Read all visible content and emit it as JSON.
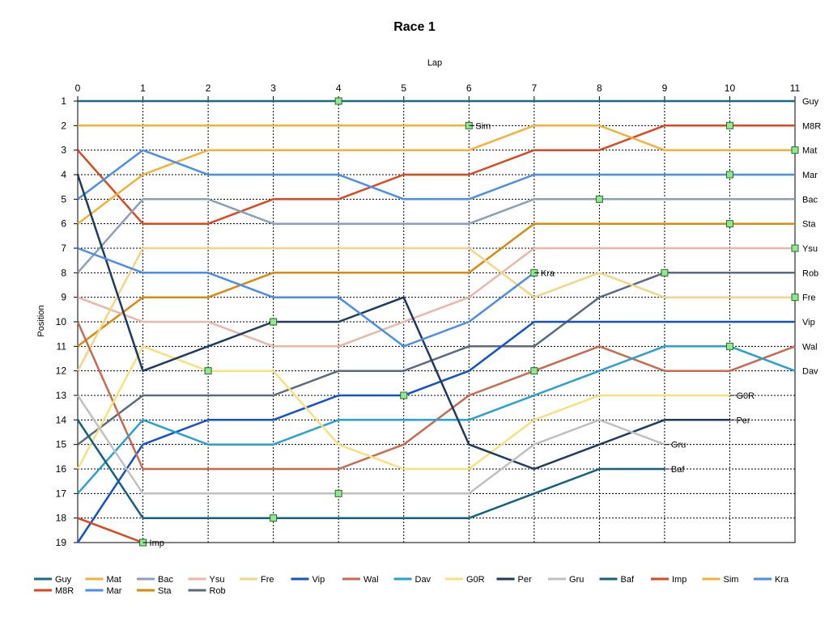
{
  "chart_data": {
    "type": "line",
    "title": "Race 1",
    "xlabel": "Lap",
    "ylabel": "Position",
    "x_axis_position": "top",
    "y_inverted": true,
    "xlim": [
      0,
      11
    ],
    "ylim": [
      1,
      19
    ],
    "x_ticks": [
      "0",
      "1",
      "2",
      "3",
      "4",
      "5",
      "6",
      "7",
      "8",
      "9",
      "10",
      "11"
    ],
    "y_ticks": [
      "1",
      "2",
      "3",
      "4",
      "5",
      "6",
      "7",
      "8",
      "9",
      "10",
      "11",
      "12",
      "13",
      "14",
      "15",
      "16",
      "17",
      "18",
      "19"
    ],
    "grid": true,
    "legend_position": "bottom",
    "series": [
      {
        "name": "Guy",
        "color": "#1a6b7c",
        "x": [
          0,
          1,
          2,
          3,
          4,
          5,
          6,
          7,
          8,
          9,
          10,
          11
        ],
        "y": [
          1,
          1,
          1,
          1,
          1,
          1,
          1,
          1,
          1,
          1,
          1,
          1
        ],
        "end_label": "Guy",
        "markers": [
          4
        ]
      },
      {
        "name": "M8R",
        "color": "#d9481f",
        "x": [
          0,
          1,
          2,
          3,
          4,
          5,
          6,
          7,
          8,
          9,
          10,
          11
        ],
        "y": [
          3,
          6,
          6,
          5,
          5,
          4,
          4,
          3,
          3,
          2,
          2,
          2
        ],
        "end_label": "M8R",
        "markers": [
          10
        ]
      },
      {
        "name": "Mat",
        "color": "#f3b03a",
        "x": [
          0,
          1,
          2,
          3,
          4,
          5,
          6,
          7,
          8,
          9,
          10,
          11
        ],
        "y": [
          6,
          4,
          3,
          3,
          3,
          3,
          3,
          2,
          2,
          3,
          3,
          3
        ],
        "end_label": "Mat",
        "markers": [
          11
        ]
      },
      {
        "name": "Mar",
        "color": "#4a8ee8",
        "x": [
          0,
          1,
          2,
          3,
          4,
          5,
          6,
          7,
          8,
          9,
          10,
          11
        ],
        "y": [
          5,
          3,
          4,
          4,
          4,
          5,
          5,
          4,
          4,
          4,
          4,
          4
        ],
        "end_label": "Mar",
        "markers": [
          10
        ]
      },
      {
        "name": "Bac",
        "color": "#8aa0b8",
        "x": [
          0,
          1,
          2,
          3,
          4,
          5,
          6,
          7,
          8,
          9,
          10,
          11
        ],
        "y": [
          8,
          5,
          5,
          6,
          6,
          6,
          6,
          5,
          5,
          5,
          5,
          5
        ],
        "end_label": "Bac",
        "markers": [
          8
        ]
      },
      {
        "name": "Sta",
        "color": "#d98a0f",
        "x": [
          0,
          1,
          2,
          3,
          4,
          5,
          6,
          7,
          8,
          9,
          10,
          11
        ],
        "y": [
          11,
          9,
          9,
          8,
          8,
          8,
          8,
          6,
          6,
          6,
          6,
          6
        ],
        "end_label": "Sta",
        "markers": [
          10
        ]
      },
      {
        "name": "Ysu",
        "color": "#eab6a8",
        "x": [
          0,
          1,
          2,
          3,
          4,
          5,
          6,
          7,
          8,
          9,
          10,
          11
        ],
        "y": [
          9,
          10,
          10,
          11,
          11,
          10,
          9,
          7,
          7,
          7,
          7,
          7
        ],
        "end_label": "Ysu",
        "markers": [
          11
        ]
      },
      {
        "name": "Rob",
        "color": "#5a6a80",
        "x": [
          0,
          1,
          2,
          3,
          4,
          5,
          6,
          7,
          8,
          9,
          10,
          11
        ],
        "y": [
          15,
          13,
          13,
          13,
          12,
          12,
          11,
          11,
          9,
          8,
          8,
          8
        ],
        "end_label": "Rob",
        "markers": [
          9
        ]
      },
      {
        "name": "Fre",
        "color": "#f4d488",
        "x": [
          0,
          1,
          2,
          3,
          4,
          5,
          6,
          7,
          8,
          9,
          10,
          11
        ],
        "y": [
          12,
          7,
          7,
          7,
          7,
          7,
          7,
          9,
          8,
          9,
          9,
          9
        ],
        "end_label": "Fre",
        "markers": [
          11
        ]
      },
      {
        "name": "Vip",
        "color": "#1452c8",
        "x": [
          0,
          1,
          2,
          3,
          4,
          5,
          6,
          7,
          8,
          9,
          10,
          11
        ],
        "y": [
          19,
          15,
          14,
          14,
          13,
          13,
          12,
          10,
          10,
          10,
          10,
          10
        ],
        "end_label": "Vip",
        "markers": [
          5
        ]
      },
      {
        "name": "Wal",
        "color": "#c86a50",
        "x": [
          0,
          1,
          2,
          3,
          4,
          5,
          6,
          7,
          8,
          9,
          10,
          11
        ],
        "y": [
          10,
          16,
          16,
          16,
          16,
          15,
          13,
          12,
          11,
          12,
          12,
          11
        ],
        "end_label": "Wal",
        "markers": [
          7
        ]
      },
      {
        "name": "Dav",
        "color": "#2aa0d0",
        "x": [
          0,
          1,
          2,
          3,
          4,
          5,
          6,
          7,
          8,
          9,
          10,
          11
        ],
        "y": [
          17,
          14,
          15,
          15,
          14,
          14,
          14,
          13,
          12,
          11,
          11,
          12
        ],
        "end_label": "Dav",
        "markers": [
          10
        ]
      },
      {
        "name": "G0R",
        "color": "#f8e080",
        "x": [
          0,
          1,
          2,
          3,
          4,
          5,
          6,
          7,
          8,
          9,
          10
        ],
        "y": [
          16,
          11,
          12,
          12,
          15,
          16,
          16,
          14,
          13,
          13,
          13
        ],
        "end_label": "G0R",
        "markers": [
          2
        ]
      },
      {
        "name": "Per",
        "color": "#1e3a60",
        "x": [
          0,
          1,
          2,
          3,
          4,
          5,
          6,
          7,
          8,
          9,
          10
        ],
        "y": [
          4,
          12,
          11,
          10,
          10,
          9,
          15,
          16,
          15,
          14,
          14
        ],
        "end_label": "Per",
        "markers": [
          3
        ]
      },
      {
        "name": "Gru",
        "color": "#c0c0c0",
        "x": [
          0,
          1,
          2,
          3,
          4,
          5,
          6,
          7,
          8,
          9
        ],
        "y": [
          13,
          17,
          17,
          17,
          17,
          17,
          17,
          15,
          14,
          15
        ],
        "end_label": "Gru",
        "markers": [
          4
        ]
      },
      {
        "name": "Baf",
        "color": "#156080",
        "x": [
          0,
          1,
          2,
          3,
          4,
          5,
          6,
          7,
          8,
          9
        ],
        "y": [
          14,
          18,
          18,
          18,
          18,
          18,
          18,
          17,
          16,
          16
        ],
        "end_label": "Baf",
        "markers": [
          3
        ]
      },
      {
        "name": "Imp",
        "color": "#d9481f",
        "x": [
          0,
          1
        ],
        "y": [
          18,
          19
        ],
        "end_label": "Imp",
        "markers": [
          1
        ]
      },
      {
        "name": "Sim",
        "color": "#f3b03a",
        "x": [
          0,
          1,
          2,
          3,
          4,
          5,
          6
        ],
        "y": [
          2,
          2,
          2,
          2,
          2,
          2,
          2
        ],
        "end_label": "Sim",
        "markers": [
          6
        ]
      },
      {
        "name": "Kra",
        "color": "#4a8ee8",
        "x": [
          0,
          1,
          2,
          3,
          4,
          5,
          6,
          7
        ],
        "y": [
          7,
          8,
          8,
          9,
          9,
          11,
          10,
          8
        ],
        "end_label": "Kra",
        "markers": [
          7
        ]
      }
    ],
    "legend_order": [
      "Guy",
      "Mat",
      "Bac",
      "Ysu",
      "Fre",
      "Vip",
      "Wal",
      "Dav",
      "G0R",
      "Per",
      "Gru",
      "Baf",
      "Imp",
      "Sim",
      "Kra",
      "M8R",
      "Mar",
      "Sta",
      "Rob"
    ]
  }
}
